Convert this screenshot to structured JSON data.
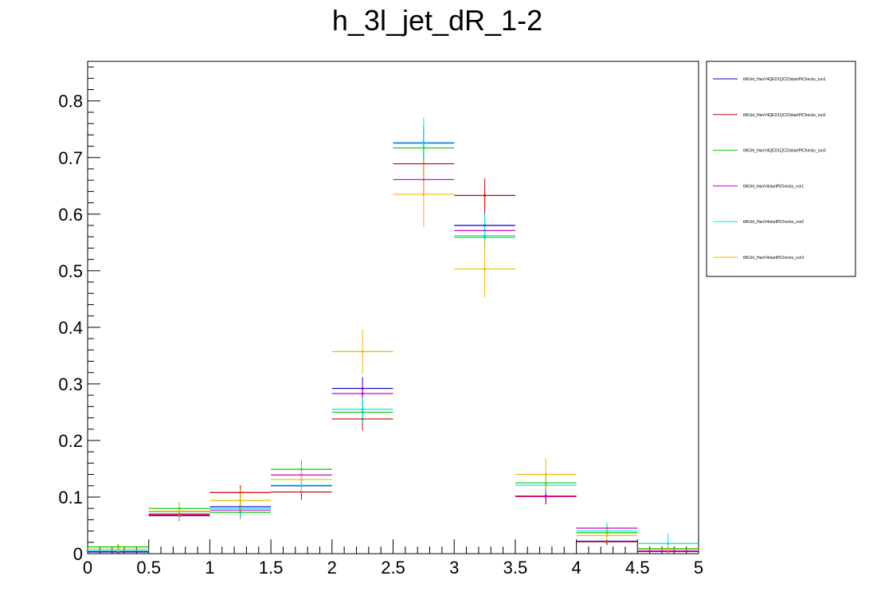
{
  "chart_data": {
    "type": "histogram",
    "title": "h_3l_jet_dR_1-2",
    "xlabel": "",
    "ylabel": "",
    "xlim": [
      0,
      5
    ],
    "ylim": [
      0,
      0.87
    ],
    "grid": false,
    "legend_position": "top-right (outside plot)",
    "bin_edges": [
      0,
      0.5,
      1,
      1.5,
      2,
      2.5,
      3,
      3.5,
      4,
      4.5,
      5
    ],
    "x_ticks": [
      "0",
      "0.5",
      "1",
      "1.5",
      "2",
      "2.5",
      "3",
      "3.5",
      "4",
      "4.5",
      "5"
    ],
    "y_ticks": [
      "0",
      "0.1",
      "0.2",
      "0.3",
      "0.4",
      "0.5",
      "0.6",
      "0.7",
      "0.8"
    ],
    "y_tick_values": [
      0,
      0.1,
      0.2,
      0.3,
      0.4,
      0.5,
      0.6,
      0.7,
      0.8
    ],
    "series": [
      {
        "name": "ttWJet_HanV4QED1QCD3startPtChecks_run1",
        "color": "#0000cc",
        "values": [
          0.003,
          0.067,
          0.083,
          0.12,
          0.292,
          0.726,
          0.58,
          0.102,
          0.022,
          0.004
        ],
        "errors": [
          0.003,
          0.009,
          0.011,
          0.014,
          0.02,
          0.03,
          0.025,
          0.014,
          0.006,
          0.003
        ]
      },
      {
        "name": "ttWJet_HanV4QED1QCD3startPtChecks_run2",
        "color": "#cc0000",
        "values": [
          0.004,
          0.07,
          0.108,
          0.109,
          0.238,
          0.689,
          0.633,
          0.101,
          0.021,
          0.004
        ],
        "errors": [
          0.003,
          0.01,
          0.013,
          0.014,
          0.02,
          0.03,
          0.03,
          0.014,
          0.006,
          0.003
        ]
      },
      {
        "name": "ttWJet_HanV4QED1QCD3startPtChecks_run3",
        "color": "#00cc00",
        "values": [
          0.012,
          0.08,
          0.073,
          0.149,
          0.25,
          0.717,
          0.559,
          0.125,
          0.037,
          0.009
        ],
        "errors": [
          0.005,
          0.011,
          0.012,
          0.016,
          0.02,
          0.03,
          0.03,
          0.015,
          0.009,
          0.004
        ]
      },
      {
        "name": "ttWJet_HanV4startPtChecks_run1",
        "color": "#cc00cc",
        "values": [
          0.005,
          0.068,
          0.077,
          0.139,
          0.283,
          0.661,
          0.571,
          0.102,
          0.045,
          0.005
        ],
        "errors": [
          0.003,
          0.01,
          0.012,
          0.016,
          0.02,
          0.03,
          0.025,
          0.014,
          0.009,
          0.003
        ]
      },
      {
        "name": "ttWJet_HanV4startPtChecks_run2",
        "color": "#00e5e5",
        "values": [
          0.005,
          0.074,
          0.08,
          0.121,
          0.255,
          0.725,
          0.562,
          0.121,
          0.04,
          0.018
        ],
        "errors": [
          0.003,
          0.01,
          0.016,
          0.014,
          0.022,
          0.045,
          0.04,
          0.016,
          0.015,
          0.018
        ]
      },
      {
        "name": "ttWJet_HanV4startPtChecks_run3",
        "color": "#f2b800",
        "values": [
          0.008,
          0.075,
          0.094,
          0.131,
          0.357,
          0.635,
          0.503,
          0.14,
          0.032,
          0.008
        ],
        "errors": [
          0.005,
          0.015,
          0.02,
          0.025,
          0.04,
          0.058,
          0.05,
          0.028,
          0.012,
          0.006
        ]
      }
    ]
  }
}
